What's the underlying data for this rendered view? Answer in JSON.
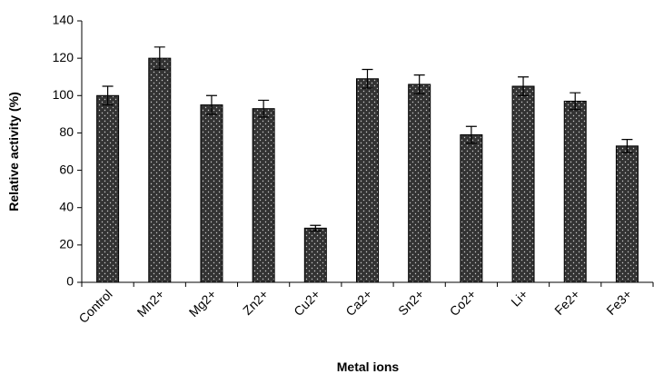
{
  "chart_data": {
    "type": "bar",
    "x_label": "Metal ions",
    "y_label": "Relative activity (%)",
    "categories": [
      "Control",
      "Mn2+",
      "Mg2+",
      "Zn2+",
      "Cu2+",
      "Ca2+",
      "Sn2+",
      "Co2+",
      "Li+",
      "Fe2+",
      "Fe3+"
    ],
    "values": [
      100,
      120,
      95,
      93,
      29,
      109,
      106,
      79,
      105,
      97,
      73
    ],
    "errors": [
      5,
      6,
      5,
      4.5,
      1.5,
      5,
      5,
      4.5,
      5,
      4.5,
      3.5
    ],
    "color": "#333333",
    "ylim": [
      0,
      140
    ],
    "yticks": [
      0,
      20,
      40,
      60,
      80,
      100,
      120,
      140
    ],
    "grid": false
  }
}
